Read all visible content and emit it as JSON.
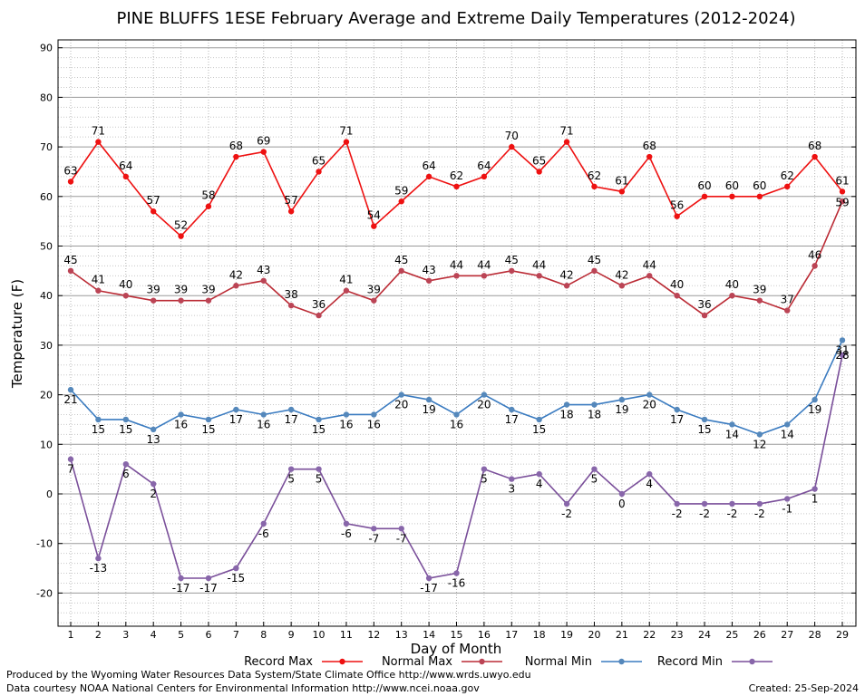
{
  "chart_data": {
    "type": "line",
    "title": "PINE BLUFFS 1ESE February Average and Extreme Daily Temperatures (2012-2024)",
    "xlabel": "Day of Month",
    "ylabel": "Temperature (F)",
    "ylim": [
      -28,
      91
    ],
    "yticks": [
      -20,
      -10,
      0,
      10,
      20,
      30,
      40,
      50,
      60,
      70,
      80,
      90
    ],
    "x": [
      1,
      2,
      3,
      4,
      5,
      6,
      7,
      8,
      9,
      10,
      11,
      12,
      13,
      14,
      15,
      16,
      17,
      18,
      19,
      20,
      21,
      22,
      23,
      24,
      25,
      26,
      27,
      28,
      29
    ],
    "grid": true,
    "legend_position": "bottom",
    "series": [
      {
        "name": "Record Max",
        "color": "#ee1111",
        "marker_color": "#ee1111",
        "values": [
          63,
          71,
          64,
          57,
          52,
          58,
          68,
          69,
          57,
          65,
          71,
          54,
          59,
          64,
          62,
          64,
          70,
          65,
          71,
          62,
          61,
          68,
          56,
          60,
          60,
          60,
          62,
          68,
          61
        ],
        "labels": [
          "63",
          "71",
          "64",
          "57",
          "52",
          "58",
          "68",
          "69",
          "57",
          "65",
          "71",
          "54",
          "59",
          "64",
          "62",
          "64",
          "70",
          "65",
          "71",
          "62",
          "61",
          "68",
          "56",
          "60",
          "60",
          "60",
          "62",
          "68",
          "61"
        ]
      },
      {
        "name": "Normal Max",
        "color": "#bb2c36",
        "marker_color": "#bb4455",
        "values": [
          45,
          41,
          40,
          39,
          39,
          39,
          42,
          43,
          38,
          36,
          41,
          39,
          45,
          43,
          44,
          44,
          45,
          44,
          42,
          45,
          42,
          44,
          40,
          36,
          40,
          39,
          37,
          46,
          59
        ],
        "labels": [
          "45",
          "41",
          "40",
          "39",
          "39",
          "39",
          "42",
          "43",
          "38",
          "36",
          "41",
          "39",
          "45",
          "43",
          "44",
          "44",
          "45",
          "44",
          "42",
          "45",
          "42",
          "44",
          "40",
          "36",
          "40",
          "39",
          "37",
          "46",
          "59"
        ]
      },
      {
        "name": "Normal Min",
        "color": "#3a7bc0",
        "marker_color": "#5588bb",
        "values": [
          21,
          15,
          15,
          13,
          16,
          15,
          17,
          16,
          17,
          15,
          16,
          16,
          20,
          19,
          16,
          20,
          17,
          15,
          18,
          18,
          19,
          20,
          17,
          15,
          14,
          12,
          14,
          19,
          31
        ],
        "labels": [
          "21",
          "15",
          "15",
          "13",
          "16",
          "15",
          "17",
          "16",
          "17",
          "15",
          "16",
          "16",
          "20",
          "19",
          "16",
          "20",
          "17",
          "15",
          "18",
          "18",
          "19",
          "20",
          "17",
          "15",
          "14",
          "12",
          "14",
          "19",
          "31"
        ]
      },
      {
        "name": "Record Min",
        "color": "#7a4f9a",
        "marker_color": "#8866aa",
        "values": [
          7,
          -13,
          6,
          2,
          -17,
          -17,
          -15,
          -6,
          5,
          5,
          -6,
          -7,
          -7,
          -17,
          -16,
          5,
          3,
          4,
          -2,
          5,
          0,
          4,
          -2,
          -2,
          -2,
          -2,
          -1,
          1,
          28
        ],
        "labels": [
          "7",
          "-13",
          "6",
          "2",
          "-17",
          "-17",
          "-15",
          "-6",
          "5",
          "5",
          "-6",
          "-7",
          "-7",
          "-17",
          "-16",
          "5",
          "3",
          "4",
          "-2",
          "5",
          "0",
          "4",
          "-2",
          "-2",
          "-2",
          "-2",
          "-1",
          "1",
          "28"
        ]
      }
    ]
  },
  "footer": {
    "producer": "Produced by the Wyoming Water Resources Data System/State Climate Office http://www.wrds.uwyo.edu",
    "source": "Data courtesy NOAA National Centers for Environmental Information http://www.ncei.noaa.gov",
    "created": "Created: 25-Sep-2024"
  }
}
